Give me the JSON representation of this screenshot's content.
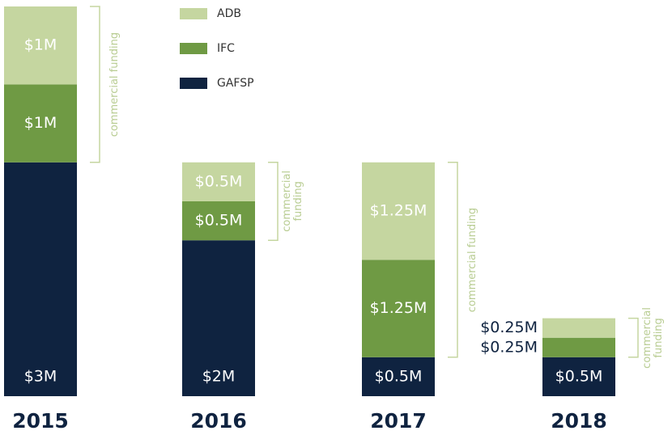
{
  "chart_data": {
    "type": "stacked-bar",
    "categories": [
      "2015",
      "2016",
      "2017",
      "2018"
    ],
    "series": [
      {
        "name": "GAFSP",
        "color": "#0f2340",
        "values": [
          3,
          2,
          0.5,
          0.5
        ],
        "value_labels": [
          "$3M",
          "$2M",
          "$0.5M",
          "$0.5M"
        ]
      },
      {
        "name": "IFC",
        "color": "#6f9a44",
        "values": [
          1,
          0.5,
          1.25,
          0.25
        ],
        "value_labels": [
          "$1M",
          "$0.5M",
          "$1.25M",
          "$0.25M"
        ]
      },
      {
        "name": "ADB",
        "color": "#c5d6a0",
        "values": [
          1,
          0.5,
          1.25,
          0.25
        ],
        "value_labels": [
          "$1M",
          "$0.5M",
          "$1.25M",
          "$0.25M"
        ]
      }
    ],
    "annotations": [
      "commercial funding",
      "commercial funding",
      "commercial funding",
      "commercial funding"
    ]
  }
}
